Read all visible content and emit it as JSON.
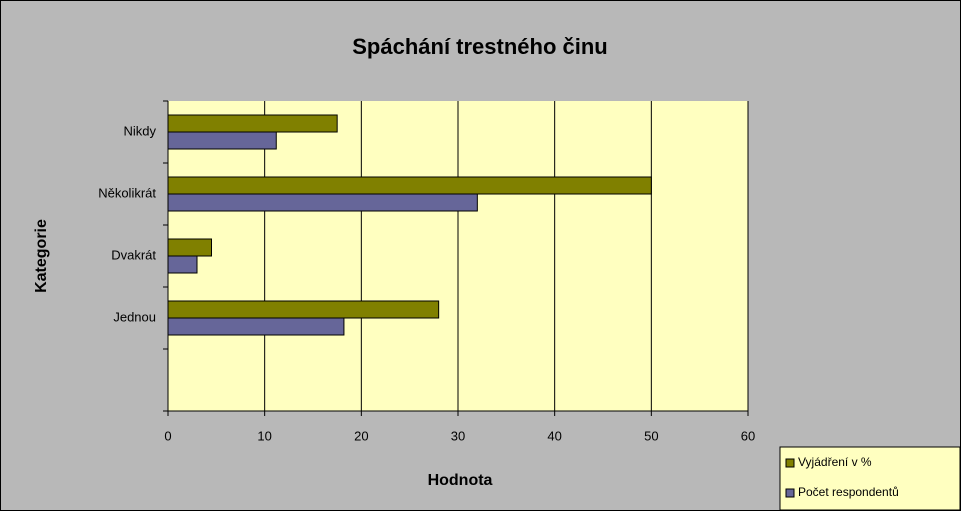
{
  "chart_data": {
    "type": "hbar",
    "title": "Spáchání trestného činu",
    "x_label": "Hodnota",
    "y_label": "Kategorie",
    "categories": [
      "Nikdy",
      "Několikrát",
      "Dvakrát",
      "Jednou",
      null
    ],
    "series": [
      {
        "name": "Vyjádření v %",
        "color": "#808000",
        "values": [
          17.5,
          50,
          4.5,
          28,
          null
        ]
      },
      {
        "name": "Počet respondentů",
        "color": "#666699",
        "values": [
          11.2,
          32,
          3,
          18.2,
          null
        ]
      }
    ],
    "xlim": [
      0,
      60
    ],
    "xticks": [
      0,
      10,
      20,
      30,
      40,
      50,
      60
    ],
    "grid": true,
    "legend": "bottom-right"
  }
}
